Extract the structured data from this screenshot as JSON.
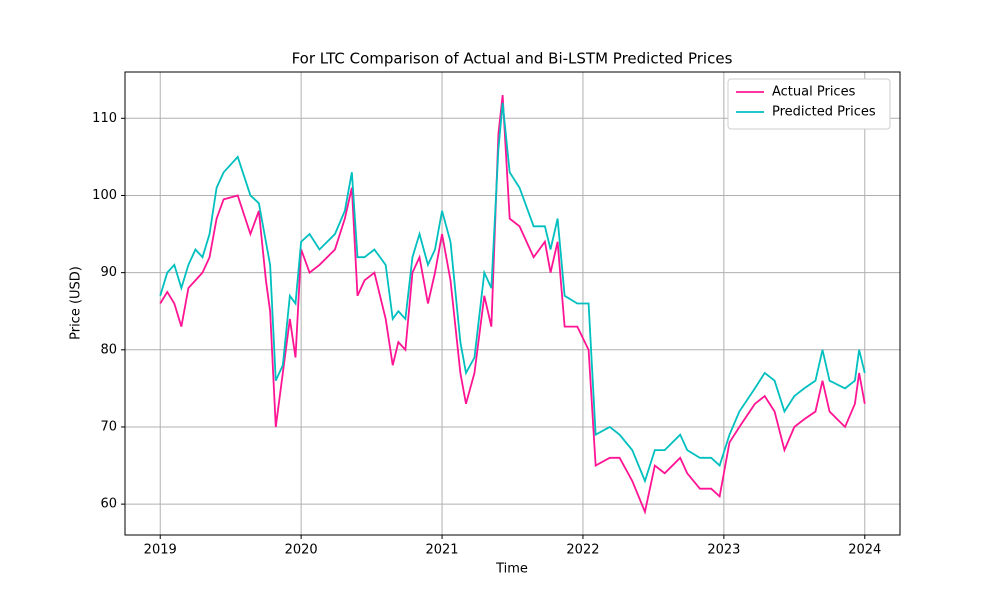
{
  "chart_data": {
    "type": "line",
    "title": "For LTC Comparison of Actual and Bi-LSTM Predicted Prices",
    "x_label": "Time",
    "y_label": "Price (USD)",
    "x": [
      2019.0,
      2019.05,
      2019.1,
      2019.15,
      2019.2,
      2019.25,
      2019.3,
      2019.35,
      2019.4,
      2019.45,
      2019.55,
      2019.64,
      2019.7,
      2019.75,
      2019.78,
      2019.82,
      2019.87,
      2019.92,
      2019.96,
      2020.0,
      2020.06,
      2020.13,
      2020.24,
      2020.31,
      2020.36,
      2020.4,
      2020.45,
      2020.52,
      2020.6,
      2020.65,
      2020.69,
      2020.74,
      2020.79,
      2020.84,
      2020.9,
      2020.95,
      2021.0,
      2021.06,
      2021.13,
      2021.17,
      2021.23,
      2021.3,
      2021.35,
      2021.4,
      2021.43,
      2021.48,
      2021.55,
      2021.65,
      2021.73,
      2021.77,
      2021.82,
      2021.87,
      2021.96,
      2022.04,
      2022.09,
      2022.19,
      2022.26,
      2022.35,
      2022.44,
      2022.51,
      2022.58,
      2022.69,
      2022.74,
      2022.83,
      2022.91,
      2022.97,
      2023.04,
      2023.11,
      2023.22,
      2023.29,
      2023.36,
      2023.43,
      2023.5,
      2023.57,
      2023.65,
      2023.7,
      2023.75,
      2023.86,
      2023.93,
      2023.96,
      2024.0
    ],
    "series": [
      {
        "name": "Actual Prices",
        "color": "#ff1493",
        "values": [
          86,
          87.5,
          86,
          83,
          88,
          89,
          90,
          92,
          97,
          99.5,
          100,
          95,
          98,
          89,
          85,
          70,
          77,
          84,
          79,
          93,
          90,
          91,
          93,
          97,
          101,
          87,
          89,
          90,
          84,
          78,
          81,
          80,
          90,
          92,
          86,
          90,
          95,
          89,
          77,
          73,
          77,
          87,
          83,
          108,
          113,
          97,
          96,
          92,
          94,
          90,
          94,
          83,
          83,
          80,
          65,
          66,
          66,
          63,
          59,
          65,
          64,
          66,
          64,
          62,
          62,
          61,
          68,
          70,
          73,
          74,
          72,
          67,
          70,
          71,
          72,
          76,
          72,
          70,
          73,
          77,
          73
        ]
      },
      {
        "name": "Predicted Prices",
        "color": "#00bfbf",
        "values": [
          87,
          90,
          91,
          88,
          91,
          93,
          92,
          95,
          101,
          103,
          105,
          100,
          99,
          94,
          91,
          76,
          78,
          87,
          86,
          94,
          95,
          93,
          95,
          98,
          103,
          92,
          92,
          93,
          91,
          84,
          85,
          84,
          92,
          95,
          91,
          93,
          98,
          94,
          81,
          77,
          79,
          90,
          88,
          106,
          112,
          103,
          101,
          96,
          96,
          93,
          97,
          87,
          86,
          86,
          69,
          70,
          69,
          67,
          63,
          67,
          67,
          69,
          67,
          66,
          66,
          65,
          69,
          72,
          75,
          77,
          76,
          72,
          74,
          75,
          76,
          80,
          76,
          75,
          76,
          80,
          77
        ]
      }
    ],
    "xlim": [
      2018.75,
      2024.25
    ],
    "xticks": [
      2019,
      2020,
      2021,
      2022,
      2023,
      2024
    ],
    "ylim": [
      56,
      116
    ],
    "yticks": [
      60,
      70,
      80,
      90,
      100,
      110
    ],
    "grid": true,
    "legend": "upper right"
  }
}
